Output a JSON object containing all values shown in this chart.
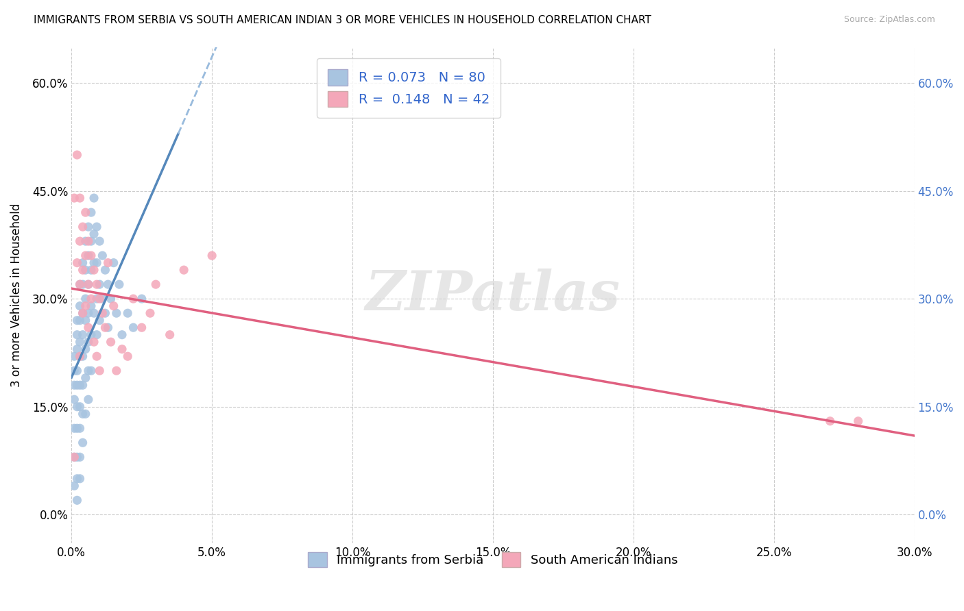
{
  "title": "IMMIGRANTS FROM SERBIA VS SOUTH AMERICAN INDIAN 3 OR MORE VEHICLES IN HOUSEHOLD CORRELATION CHART",
  "source": "Source: ZipAtlas.com",
  "xmin": 0.0,
  "xmax": 0.3,
  "ymin": -0.04,
  "ymax": 0.65,
  "x_tick_vals": [
    0.0,
    0.05,
    0.1,
    0.15,
    0.2,
    0.25,
    0.3
  ],
  "x_tick_labels": [
    "0.0%",
    "5.0%",
    "10.0%",
    "15.0%",
    "20.0%",
    "25.0%",
    "30.0%"
  ],
  "y_tick_vals": [
    0.0,
    0.15,
    0.3,
    0.45,
    0.6
  ],
  "y_tick_labels": [
    "0.0%",
    "15.0%",
    "30.0%",
    "45.0%",
    "60.0%"
  ],
  "R_blue": 0.073,
  "N_blue": 80,
  "R_pink": 0.148,
  "N_pink": 42,
  "blue_color": "#a8c4e0",
  "pink_color": "#f4a7b9",
  "trend_blue_solid": "#5588bb",
  "trend_blue_dash": "#99bbdd",
  "trend_pink": "#e06080",
  "watermark": "ZIPatlas",
  "ylabel": "3 or more Vehicles in Household",
  "legend_label_blue": "Immigrants from Serbia",
  "legend_label_pink": "South American Indians",
  "blue_scatter_x": [
    0.001,
    0.001,
    0.001,
    0.001,
    0.001,
    0.001,
    0.001,
    0.002,
    0.002,
    0.002,
    0.002,
    0.002,
    0.002,
    0.002,
    0.002,
    0.002,
    0.002,
    0.003,
    0.003,
    0.003,
    0.003,
    0.003,
    0.003,
    0.003,
    0.003,
    0.003,
    0.003,
    0.004,
    0.004,
    0.004,
    0.004,
    0.004,
    0.004,
    0.004,
    0.004,
    0.005,
    0.005,
    0.005,
    0.005,
    0.005,
    0.005,
    0.005,
    0.006,
    0.006,
    0.006,
    0.006,
    0.006,
    0.006,
    0.006,
    0.007,
    0.007,
    0.007,
    0.007,
    0.007,
    0.007,
    0.008,
    0.008,
    0.008,
    0.008,
    0.009,
    0.009,
    0.009,
    0.009,
    0.01,
    0.01,
    0.01,
    0.011,
    0.011,
    0.012,
    0.012,
    0.013,
    0.013,
    0.014,
    0.015,
    0.016,
    0.017,
    0.018,
    0.02,
    0.022,
    0.025
  ],
  "blue_scatter_y": [
    0.22,
    0.2,
    0.18,
    0.16,
    0.12,
    0.08,
    0.04,
    0.27,
    0.25,
    0.23,
    0.2,
    0.18,
    0.15,
    0.12,
    0.08,
    0.05,
    0.02,
    0.32,
    0.29,
    0.27,
    0.24,
    0.22,
    0.18,
    0.15,
    0.12,
    0.08,
    0.05,
    0.35,
    0.32,
    0.28,
    0.25,
    0.22,
    0.18,
    0.14,
    0.1,
    0.38,
    0.34,
    0.3,
    0.27,
    0.23,
    0.19,
    0.14,
    0.4,
    0.36,
    0.32,
    0.28,
    0.24,
    0.2,
    0.16,
    0.42,
    0.38,
    0.34,
    0.29,
    0.25,
    0.2,
    0.44,
    0.39,
    0.35,
    0.28,
    0.4,
    0.35,
    0.3,
    0.25,
    0.38,
    0.32,
    0.27,
    0.36,
    0.3,
    0.34,
    0.28,
    0.32,
    0.26,
    0.3,
    0.35,
    0.28,
    0.32,
    0.25,
    0.28,
    0.26,
    0.3
  ],
  "pink_scatter_x": [
    0.001,
    0.001,
    0.002,
    0.002,
    0.003,
    0.003,
    0.003,
    0.003,
    0.004,
    0.004,
    0.004,
    0.005,
    0.005,
    0.005,
    0.006,
    0.006,
    0.006,
    0.007,
    0.007,
    0.008,
    0.008,
    0.009,
    0.009,
    0.01,
    0.01,
    0.011,
    0.012,
    0.013,
    0.014,
    0.015,
    0.016,
    0.018,
    0.02,
    0.022,
    0.025,
    0.028,
    0.03,
    0.035,
    0.04,
    0.05,
    0.27,
    0.28
  ],
  "pink_scatter_y": [
    0.44,
    0.08,
    0.5,
    0.35,
    0.44,
    0.38,
    0.32,
    0.22,
    0.4,
    0.34,
    0.28,
    0.42,
    0.36,
    0.29,
    0.38,
    0.32,
    0.26,
    0.36,
    0.3,
    0.34,
    0.24,
    0.32,
    0.22,
    0.3,
    0.2,
    0.28,
    0.26,
    0.35,
    0.24,
    0.29,
    0.2,
    0.23,
    0.22,
    0.3,
    0.26,
    0.28,
    0.32,
    0.25,
    0.34,
    0.36,
    0.13,
    0.13
  ],
  "trend_blue_x_start": 0.0,
  "trend_blue_x_solid_end": 0.038,
  "trend_blue_x_dash_end": 0.17,
  "trend_pink_x_start": 0.0,
  "trend_pink_x_end": 0.3
}
